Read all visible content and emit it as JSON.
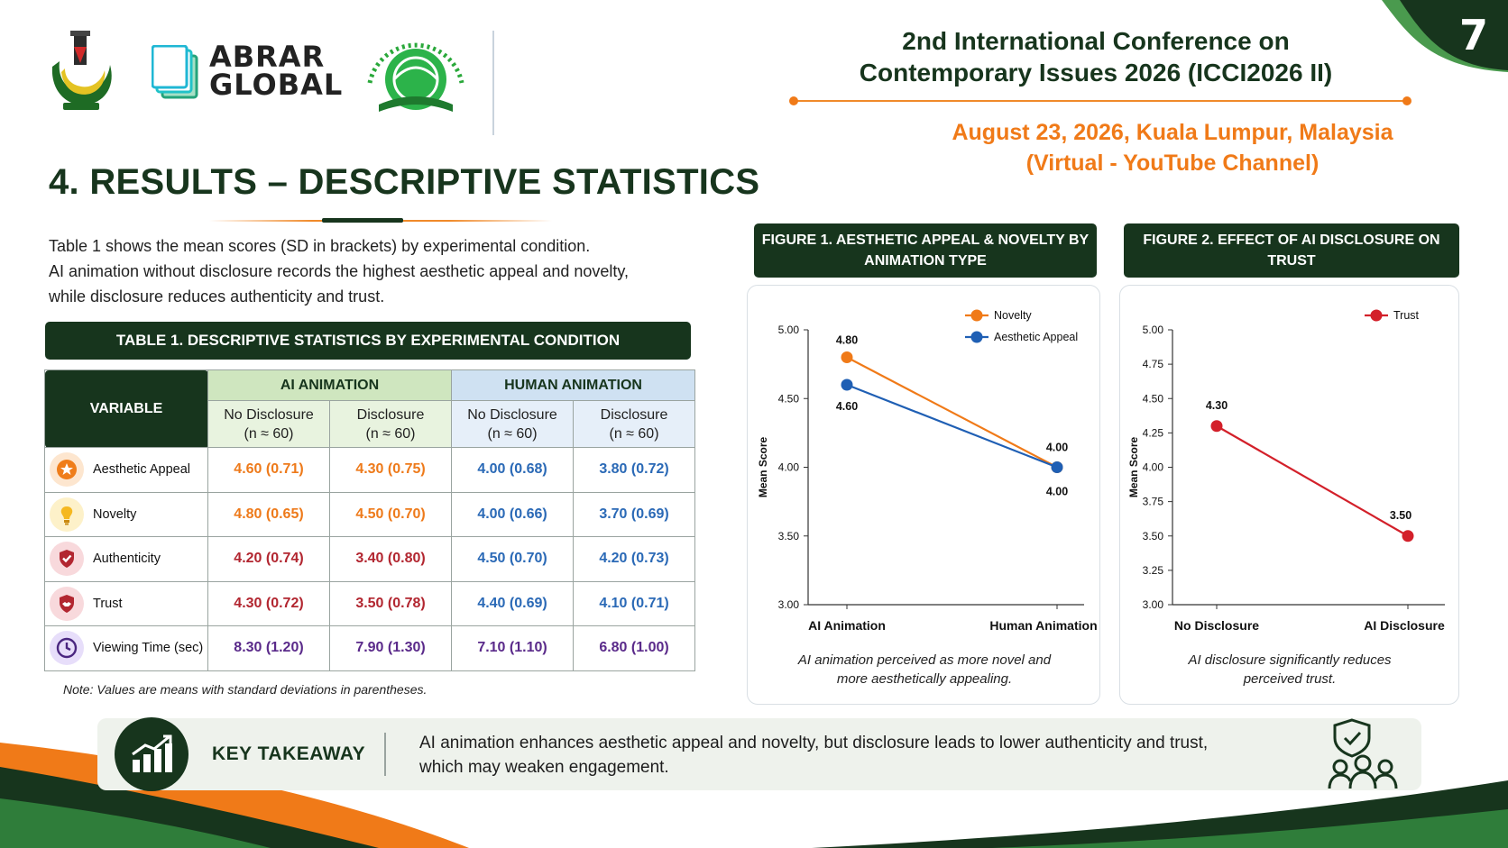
{
  "page": {
    "number": "7"
  },
  "logos": {
    "abrar_line1": "ABRAR",
    "abrar_line2": "GLOBAL"
  },
  "conference": {
    "title_line1": "2nd International Conference on",
    "title_line2": "Contemporary Issues 2026 (ICCI2026 II)",
    "date_line1": "August 23, 2026, Kuala Lumpur, Malaysia",
    "date_line2": "(Virtual - YouTube Channel)"
  },
  "section": {
    "title": "4. RESULTS – DESCRIPTIVE STATISTICS"
  },
  "intro": {
    "line1": "Table 1 shows the mean scores (SD in brackets) by experimental condition.",
    "line2": "AI animation without disclosure records the highest aesthetic appeal and novelty,",
    "line3": "while disclosure reduces authenticity and trust."
  },
  "table": {
    "title": "TABLE 1. DESCRIPTIVE STATISTICS BY EXPERIMENTAL CONDITION",
    "variable_header": "VARIABLE",
    "group_ai": "AI ANIMATION",
    "group_human": "HUMAN ANIMATION",
    "sub_no_disclosure": "No Disclosure",
    "sub_disclosure": "Disclosure",
    "sub_n": "(n ≈ 60)",
    "rows": [
      {
        "label": "Aesthetic Appeal",
        "icon": "star-badge-icon",
        "values": [
          "4.60 (0.71)",
          "4.30 (0.75)",
          "4.00 (0.68)",
          "3.80 (0.72)"
        ]
      },
      {
        "label": "Novelty",
        "icon": "lightbulb-icon",
        "values": [
          "4.80 (0.65)",
          "4.50 (0.70)",
          "4.00 (0.66)",
          "3.70 (0.69)"
        ]
      },
      {
        "label": "Authenticity",
        "icon": "shield-check-icon",
        "values": [
          "4.20 (0.74)",
          "3.40 (0.80)",
          "4.50 (0.70)",
          "4.20 (0.73)"
        ]
      },
      {
        "label": "Trust",
        "icon": "handshake-shield-icon",
        "values": [
          "4.30 (0.72)",
          "3.50 (0.78)",
          "4.40 (0.69)",
          "4.10 (0.71)"
        ]
      },
      {
        "label": "Viewing Time (sec)",
        "icon": "clock-icon",
        "values": [
          "8.30 (1.20)",
          "7.90 (1.30)",
          "7.10 (1.10)",
          "6.80 (1.00)"
        ]
      }
    ],
    "note": "Note: Values are means with standard deviations in parentheses."
  },
  "colors": {
    "dark_green": "#17351d",
    "orange": "#ee7a1a",
    "blue": "#2a69b6",
    "red": "#b22630",
    "purple": "#5a2a8a",
    "trust_red": "#d3202a"
  },
  "chart_data": [
    {
      "type": "line",
      "title": "FIGURE 1. AESTHETIC APPEAL & NOVELTY BY ANIMATION TYPE",
      "ylabel": "Mean Score",
      "xlabel": "",
      "categories": [
        "AI Animation",
        "Human Animation"
      ],
      "ylim": [
        3.0,
        5.0
      ],
      "yticks": [
        "3.00",
        "3.50",
        "4.00",
        "4.50",
        "5.00"
      ],
      "series": [
        {
          "name": "Novelty",
          "color": "#f07a18",
          "values": [
            4.8,
            4.0
          ],
          "labels": [
            "4.80",
            "4.00"
          ]
        },
        {
          "name": "Aesthetic Appeal",
          "color": "#1f5fb4",
          "values": [
            4.6,
            4.0
          ],
          "labels": [
            "4.60",
            "4.00"
          ]
        }
      ],
      "legend": "top-right",
      "grid": false,
      "caption_line1": "AI animation perceived as more novel and",
      "caption_line2": "more aesthetically appealing."
    },
    {
      "type": "line",
      "title": "FIGURE 2. EFFECT OF AI DISCLOSURE ON TRUST",
      "ylabel": "Mean Score",
      "xlabel": "",
      "categories": [
        "No Disclosure",
        "AI Disclosure"
      ],
      "ylim": [
        3.0,
        5.0
      ],
      "yticks": [
        "3.00",
        "3.25",
        "3.50",
        "3.75",
        "4.00",
        "4.25",
        "4.50",
        "4.75",
        "5.00"
      ],
      "series": [
        {
          "name": "Trust",
          "color": "#d3202a",
          "values": [
            4.3,
            3.5
          ],
          "labels": [
            "4.30",
            "3.50"
          ]
        }
      ],
      "legend": "top-right",
      "grid": false,
      "caption_line1": "AI disclosure significantly reduces",
      "caption_line2": "perceived trust."
    }
  ],
  "takeaway": {
    "label": "KEY TAKEAWAY",
    "line1": "AI animation enhances aesthetic appeal and novelty, but disclosure leads to lower authenticity and trust,",
    "line2": "which may weaken engagement."
  }
}
